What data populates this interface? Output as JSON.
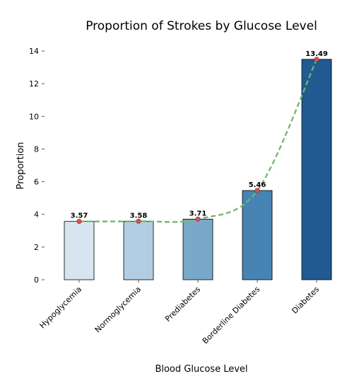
{
  "chart_data": {
    "type": "bar",
    "title": "Proportion of Strokes by Glucose Level",
    "xlabel": "Blood Glucose Level",
    "ylabel": "Proportion",
    "categories": [
      "Hypoglycemia",
      "Normoglycemia",
      "Prediabetes",
      "Borderline Diabetes",
      "Diabetes"
    ],
    "values": [
      3.57,
      3.58,
      3.71,
      5.46,
      13.49
    ],
    "data_labels": [
      "3.57",
      "3.58",
      "3.71",
      "5.46",
      "13.49"
    ],
    "ylim": [
      0,
      14
    ],
    "yticks": [
      0,
      2,
      4,
      6,
      8,
      10,
      12,
      14
    ],
    "grid": false,
    "legend": "none",
    "overlay_line": {
      "style": "dashed",
      "color": "#6db86d",
      "marker_color": "#d9534f"
    },
    "bar_colors": [
      "#d8e5f1",
      "#b2cde1",
      "#78a9ca",
      "#4784b3",
      "#205a90"
    ]
  }
}
